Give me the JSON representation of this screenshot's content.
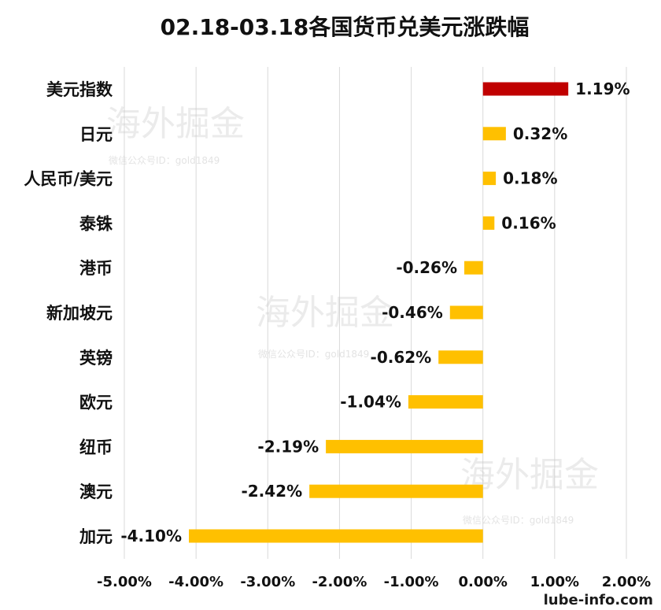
{
  "chart_data": {
    "type": "bar",
    "orientation": "horizontal",
    "title": "02.18-03.18各国货币兑美元涨跌幅",
    "categories": [
      "美元指数",
      "日元",
      "人民币/美元",
      "泰铢",
      "港币",
      "新加坡元",
      "英镑",
      "欧元",
      "纽币",
      "澳元",
      "加元"
    ],
    "values": [
      1.19,
      0.32,
      0.18,
      0.16,
      -0.26,
      -0.46,
      -0.62,
      -1.04,
      -2.19,
      -2.42,
      -4.1
    ],
    "value_labels": [
      "1.19%",
      "0.32%",
      "0.18%",
      "0.16%",
      "-0.26%",
      "-0.46%",
      "-0.62%",
      "-1.04%",
      "-2.19%",
      "-2.42%",
      "-4.10%"
    ],
    "xlim": [
      -5,
      2
    ],
    "x_ticks": [
      "-5.00%",
      "-4.00%",
      "-3.00%",
      "-2.00%",
      "-1.00%",
      "0.00%",
      "1.00%",
      "2.00%"
    ],
    "grid": true,
    "colors": {
      "highlight": "#c00000",
      "default": "#ffc000"
    },
    "highlight_index": 0
  },
  "watermark": {
    "text": "海外掘金",
    "subtext": "微信公众号ID：gold1849"
  },
  "footer": {
    "text": "lube-info.com"
  }
}
